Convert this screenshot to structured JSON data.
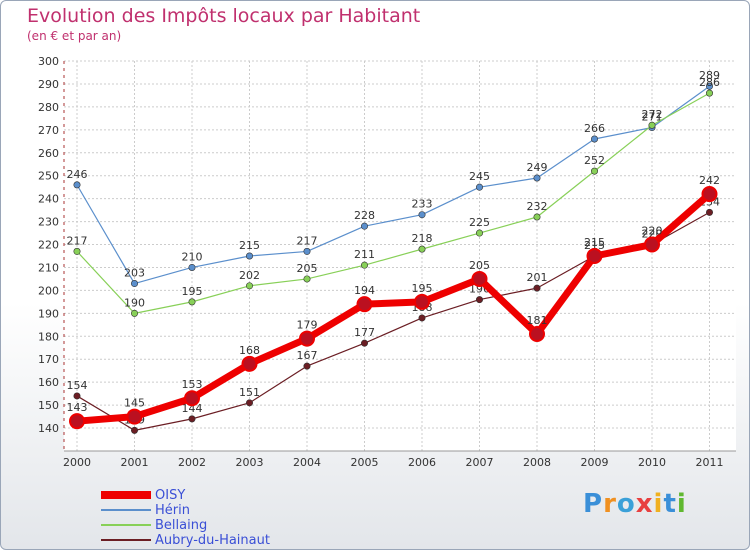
{
  "chart_data": {
    "type": "line",
    "title": "Evolution des Impôts locaux par Habitant",
    "subtitle": "(en € et par an)",
    "xlabel": "",
    "ylabel": "",
    "ylim": [
      130,
      300
    ],
    "yticks": [
      140,
      150,
      160,
      170,
      180,
      190,
      200,
      210,
      220,
      230,
      240,
      250,
      260,
      270,
      280,
      290,
      300
    ],
    "categories": [
      "2000",
      "2001",
      "2002",
      "2003",
      "2004",
      "2005",
      "2006",
      "2007",
      "2008",
      "2009",
      "2010",
      "2011"
    ],
    "grid": true,
    "legend_position": "bottom-left",
    "series": [
      {
        "name": "Hérin",
        "color": "#5b8fcc",
        "values": [
          246,
          203,
          210,
          215,
          217,
          228,
          233,
          245,
          249,
          266,
          271,
          289
        ]
      },
      {
        "name": "Bellaing",
        "color": "#88d058",
        "values": [
          217,
          190,
          195,
          202,
          205,
          211,
          218,
          225,
          232,
          252,
          272,
          286
        ]
      },
      {
        "name": "Aubry-du-Hainaut",
        "color": "#6b1e24",
        "values": [
          154,
          139,
          144,
          151,
          167,
          177,
          188,
          196,
          201,
          215,
          220,
          234
        ]
      },
      {
        "name": "OISY",
        "color": "#ee0000",
        "values": [
          143,
          145,
          153,
          168,
          179,
          194,
          195,
          205,
          181,
          215,
          220,
          242
        ]
      }
    ],
    "legend_order": [
      "OISY",
      "Hérin",
      "Bellaing",
      "Aubry-du-Hainaut"
    ]
  },
  "branding": {
    "logo_letters": [
      "P",
      "r",
      "o",
      "x",
      "i",
      "t",
      "i"
    ],
    "logo_colors": [
      "#3a8fd8",
      "#f09020",
      "#3aa0d8",
      "#e84040",
      "#f0b020",
      "#3a8fd8",
      "#60b830"
    ]
  }
}
